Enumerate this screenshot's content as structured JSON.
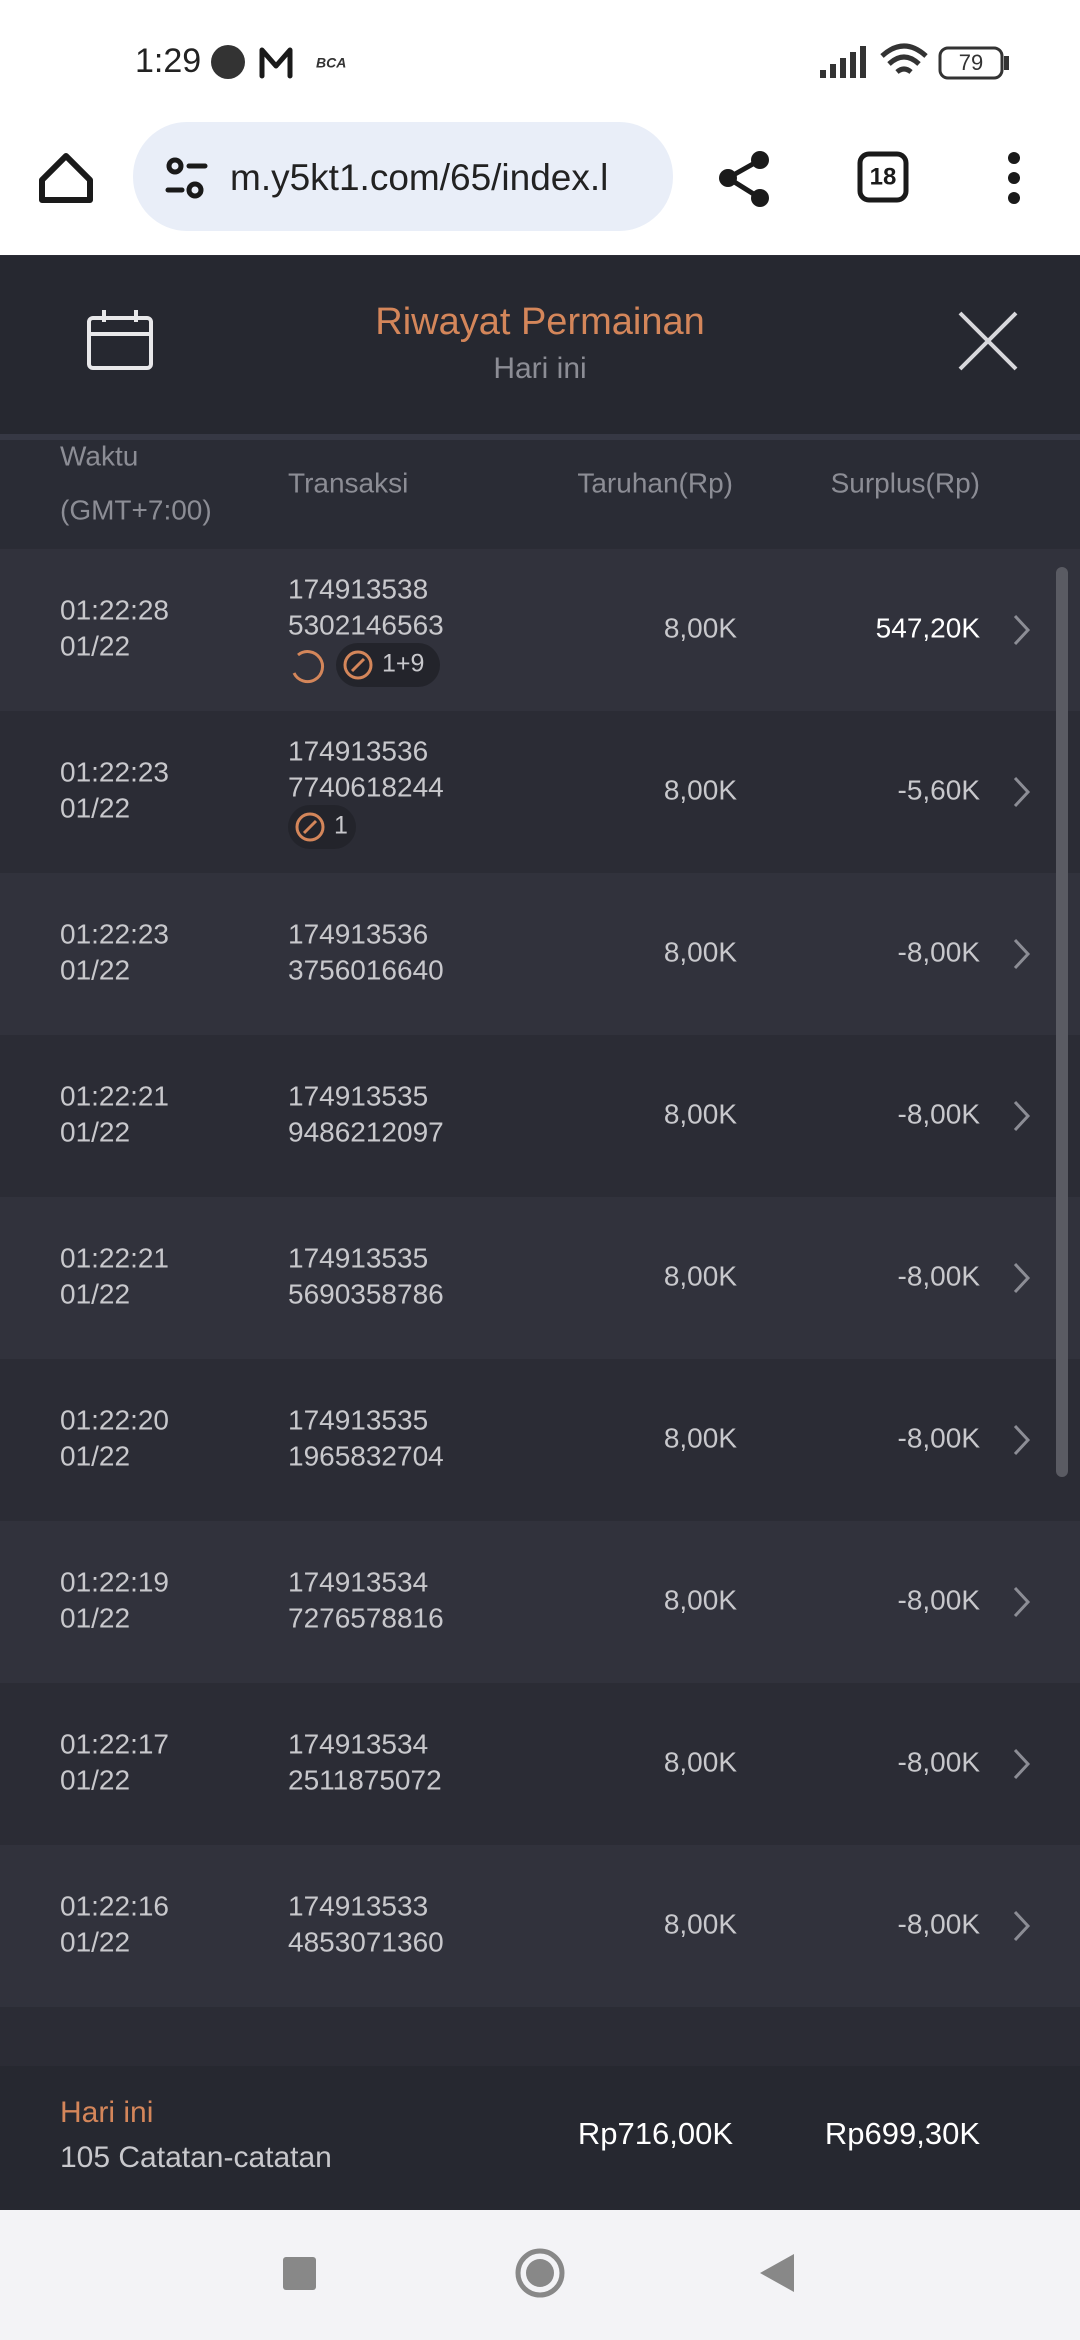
{
  "status_bar": {
    "time": "1:29",
    "battery": "79"
  },
  "browser": {
    "url": "m.y5kt1.com/65/index.l",
    "tab_count": "18"
  },
  "header": {
    "title": "Riwayat Permainan",
    "subtitle": "Hari ini"
  },
  "table": {
    "columns": {
      "time": "Waktu",
      "timezone": "(GMT+7:00)",
      "transaction": "Transaksi",
      "bet": "Taruhan(Rp)",
      "surplus": "Surplus(Rp)"
    },
    "rows": [
      {
        "time": "01:22:28",
        "date": "01/22",
        "transaction": [
          "174913538",
          "5302146563"
        ],
        "bet": "8,00K",
        "surplus": "547,20K",
        "badge": {
          "label": "1+9",
          "refresh": true
        }
      },
      {
        "time": "01:22:23",
        "date": "01/22",
        "transaction": [
          "174913536",
          "7740618244"
        ],
        "bet": "8,00K",
        "surplus": "-5,60K",
        "badge": {
          "label": "1",
          "refresh": false
        }
      },
      {
        "time": "01:22:23",
        "date": "01/22",
        "transaction": [
          "174913536",
          "3756016640"
        ],
        "bet": "8,00K",
        "surplus": "-8,00K"
      },
      {
        "time": "01:22:21",
        "date": "01/22",
        "transaction": [
          "174913535",
          "9486212097"
        ],
        "bet": "8,00K",
        "surplus": "-8,00K"
      },
      {
        "time": "01:22:21",
        "date": "01/22",
        "transaction": [
          "174913535",
          "5690358786"
        ],
        "bet": "8,00K",
        "surplus": "-8,00K"
      },
      {
        "time": "01:22:20",
        "date": "01/22",
        "transaction": [
          "174913535",
          "1965832704"
        ],
        "bet": "8,00K",
        "surplus": "-8,00K"
      },
      {
        "time": "01:22:19",
        "date": "01/22",
        "transaction": [
          "174913534",
          "7276578816"
        ],
        "bet": "8,00K",
        "surplus": "-8,00K"
      },
      {
        "time": "01:22:17",
        "date": "01/22",
        "transaction": [
          "174913534",
          "2511875072"
        ],
        "bet": "8,00K",
        "surplus": "-8,00K"
      },
      {
        "time": "01:22:16",
        "date": "01/22",
        "transaction": [
          "174913533",
          "4853071360"
        ],
        "bet": "8,00K",
        "surplus": "-8,00K"
      }
    ]
  },
  "footer": {
    "period": "Hari ini",
    "count": "105 Catatan-catatan",
    "total_bet": "Rp716,00K",
    "total_surplus": "Rp699,30K"
  }
}
